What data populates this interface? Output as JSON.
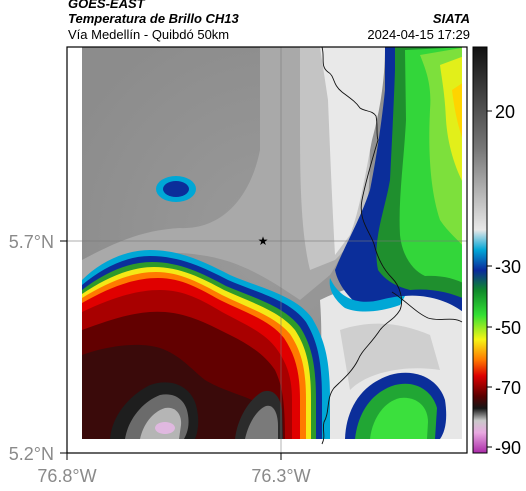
{
  "header": {
    "satellite": "GOES-EAST",
    "product": "Temperatura de Brillo CH13",
    "area": "Vía Medellín - Quibdó 50km",
    "agency": "SIATA",
    "timestamp": "2024-04-15 17:29"
  },
  "map": {
    "lat_ticks": [
      {
        "value": 5.7,
        "label": "5.7°N"
      },
      {
        "value": 5.2,
        "label": "5.2°N"
      }
    ],
    "lon_ticks": [
      {
        "value": -76.8,
        "label": "76.8°W"
      },
      {
        "value": -76.3,
        "label": "76.3°W"
      }
    ],
    "marker": {
      "symbol": "★"
    }
  },
  "colorbar": {
    "ticks": [
      {
        "value": 20,
        "label": "20"
      },
      {
        "value": -30,
        "label": "-30"
      },
      {
        "value": -50,
        "label": "-50"
      },
      {
        "value": -70,
        "label": "-70"
      },
      {
        "value": -90,
        "label": "-90"
      }
    ],
    "range": [
      -95,
      45
    ]
  }
}
